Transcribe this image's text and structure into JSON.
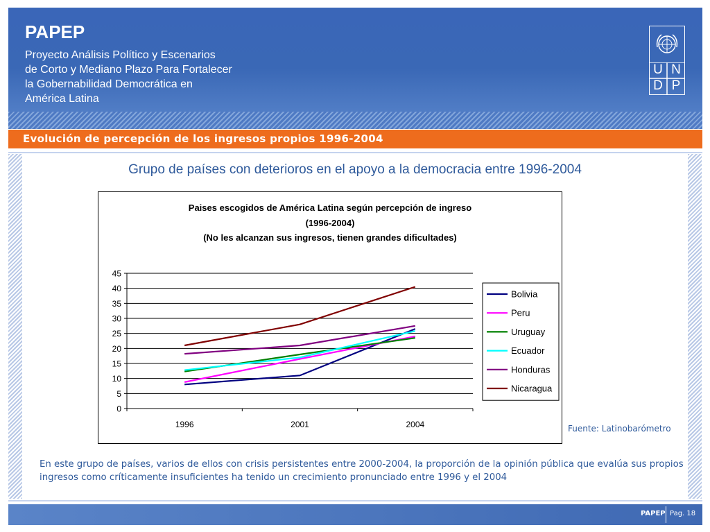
{
  "header": {
    "brand": "PAPEP",
    "subtitle": "Proyecto Análisis Político y Escenarios\nde Corto y Mediano Plazo Para Fortalecer\nla Gobernabilidad Democrática en\nAmérica Latina",
    "logo_letters": [
      "U",
      "N",
      "D",
      "P"
    ]
  },
  "section": {
    "title": "Evolución de percepción de los ingresos propios 1996-2004"
  },
  "main_title": "Grupo de países con deterioros en el apoyo a la democracia entre 1996-2004",
  "chart_data": {
    "type": "line",
    "title": [
      "Paises escogidos de América Latina según percepción de ingreso",
      "(1996-2004)",
      "(No les alcanzan sus ingresos, tienen grandes dificultades)"
    ],
    "categories": [
      "1996",
      "2001",
      "2004"
    ],
    "ylim": [
      0,
      45
    ],
    "yticks": [
      "0",
      "5",
      "10",
      "15",
      "20",
      "25",
      "30",
      "35",
      "40",
      "45"
    ],
    "grid": true,
    "legend_position": "right",
    "series": [
      {
        "name": "Bolivia",
        "color": "#000080",
        "values": [
          8,
          11,
          26.5
        ]
      },
      {
        "name": "Peru",
        "color": "#ff00ff",
        "values": [
          8.8,
          16.5,
          24
        ]
      },
      {
        "name": "Uruguay",
        "color": "#008000",
        "values": [
          12.3,
          18,
          23.5
        ]
      },
      {
        "name": "Ecuador",
        "color": "#00ffff",
        "values": [
          12.8,
          17,
          25.8
        ]
      },
      {
        "name": "Honduras",
        "color": "#800080",
        "values": [
          18.2,
          21,
          27.5
        ]
      },
      {
        "name": "Nicaragua",
        "color": "#800000",
        "values": [
          21,
          28,
          40.5
        ]
      }
    ]
  },
  "source": "Fuente:  Latinobarómetro",
  "paragraph": "En este grupo de países, varios de ellos con crisis persistentes entre 2000-2004, la proporción de  la opinión pública que evalúa sus propios ingresos como críticamente insuficientes ha tenido un crecimiento pronunciado entre 1996 y el 2004",
  "footer": {
    "left": "PAPEP",
    "page": "Pag. 18"
  }
}
